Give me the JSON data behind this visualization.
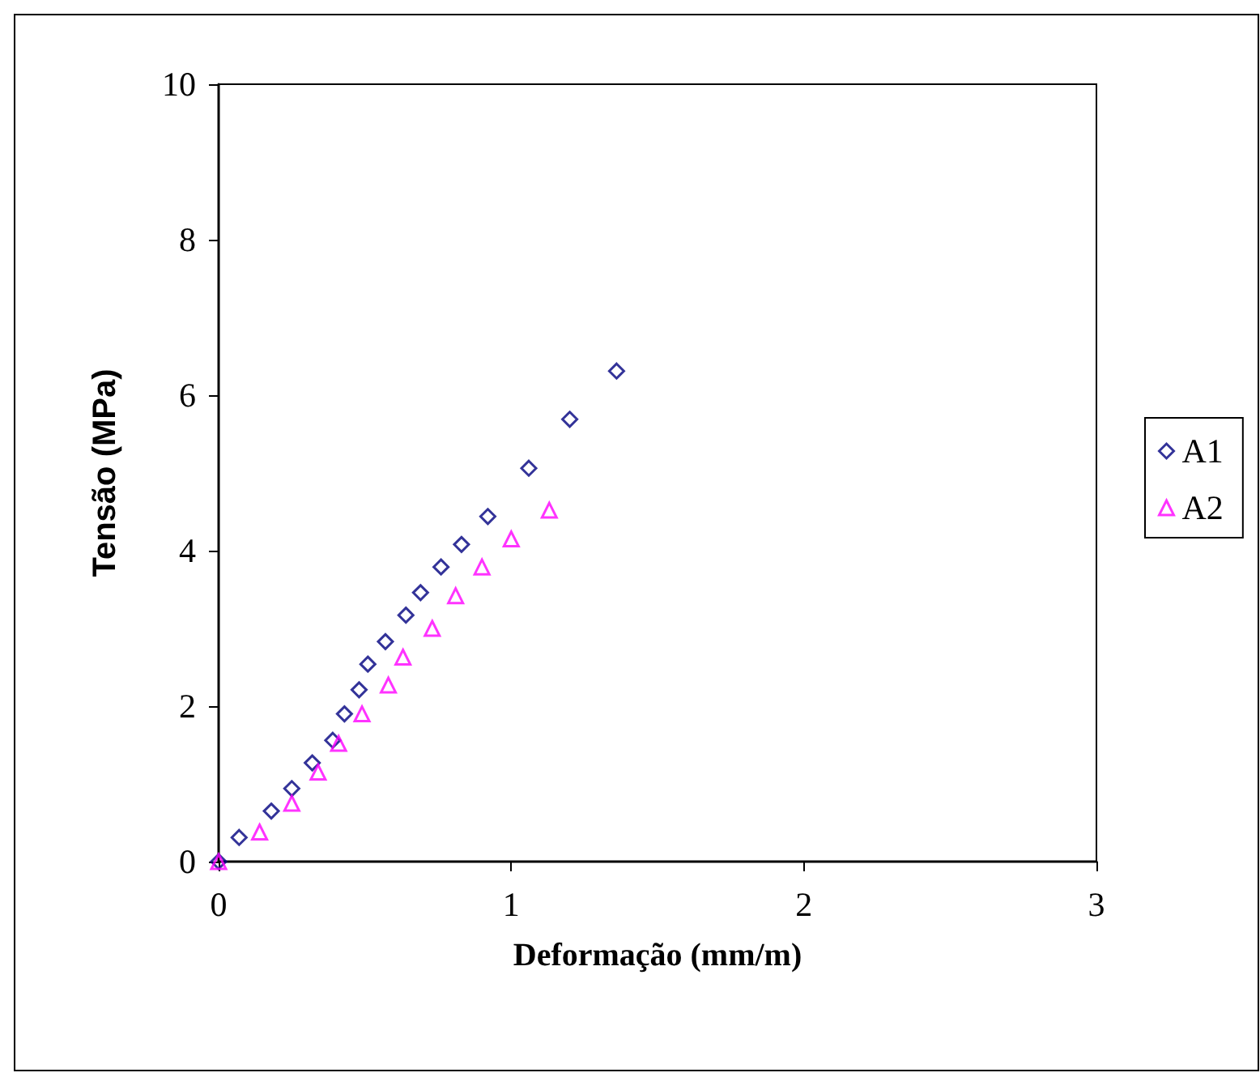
{
  "chart_data": {
    "type": "scatter",
    "xlabel": "Deformação (mm/m)",
    "ylabel": "Tensão (MPa)",
    "xlim": [
      0,
      3
    ],
    "xticks": [
      0,
      1,
      2,
      3
    ],
    "ylim": [
      0,
      10
    ],
    "yticks": [
      0,
      2,
      4,
      6,
      8,
      10
    ],
    "grid": false,
    "legend": "right",
    "series": [
      {
        "name": "A1",
        "color": "#000080",
        "marker": "diamond",
        "x": [
          0,
          0.07,
          0.18,
          0.25,
          0.32,
          0.39,
          0.43,
          0.48,
          0.51,
          0.57,
          0.64,
          0.69,
          0.76,
          0.83,
          0.92,
          1.06,
          1.2,
          1.36
        ],
        "values": [
          0,
          0.31,
          0.65,
          0.94,
          1.27,
          1.56,
          1.9,
          2.21,
          2.54,
          2.83,
          3.17,
          3.46,
          3.79,
          4.08,
          4.44,
          5.06,
          5.69,
          6.31
        ]
      },
      {
        "name": "A2",
        "color": "#ff00ff",
        "marker": "triangle",
        "x": [
          0,
          0.14,
          0.25,
          0.34,
          0.41,
          0.49,
          0.58,
          0.63,
          0.73,
          0.81,
          0.9,
          1,
          1.13
        ],
        "values": [
          0,
          0.38,
          0.75,
          1.15,
          1.52,
          1.9,
          2.27,
          2.63,
          3,
          3.42,
          3.79,
          4.15,
          4.52
        ]
      }
    ]
  }
}
